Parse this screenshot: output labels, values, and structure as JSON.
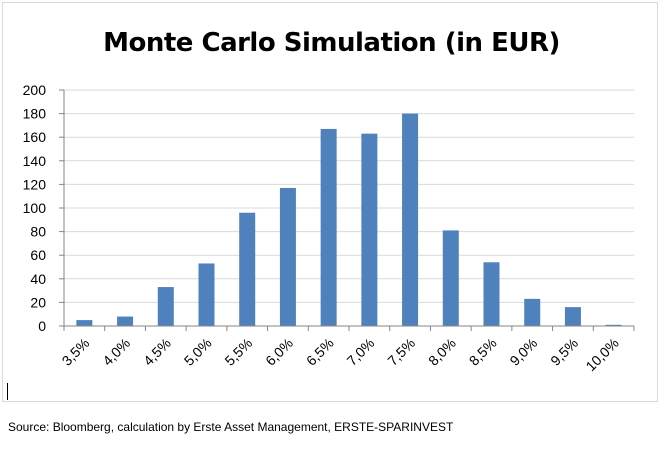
{
  "chart_data": {
    "type": "bar",
    "title": "Monte Carlo Simulation (in EUR)",
    "categories": [
      "3,5%",
      "4,0%",
      "4,5%",
      "5,0%",
      "5,5%",
      "6,0%",
      "6,5%",
      "7,0%",
      "7,5%",
      "8,0%",
      "8,5%",
      "9,0%",
      "9,5%",
      "10,0%"
    ],
    "values": [
      5,
      8,
      33,
      53,
      96,
      117,
      167,
      163,
      180,
      81,
      54,
      23,
      16,
      1
    ],
    "xlabel": "",
    "ylabel": "",
    "ylim": [
      0,
      200
    ],
    "yticks": [
      0,
      20,
      40,
      60,
      80,
      100,
      120,
      140,
      160,
      180,
      200
    ],
    "grid": true,
    "legend": "none",
    "bar_color": "#4f81bd",
    "grid_color": "#d9d9d9"
  },
  "source": "Source: Bloomberg, calculation by Erste Asset Management, ERSTE-SPARINVEST"
}
